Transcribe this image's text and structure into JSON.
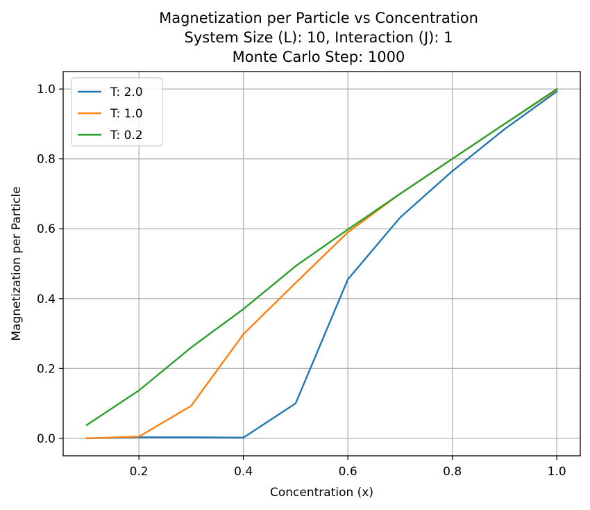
{
  "chart_data": {
    "type": "line",
    "title": [
      "Magnetization per Particle vs Concentration",
      "System Size (L): 10, Interaction (J): 1",
      "Monte Carlo Step: 1000"
    ],
    "xlabel": "Concentration (x)",
    "ylabel": "Magnetization per Particle",
    "xlim": [
      0.055,
      1.045
    ],
    "ylim": [
      -0.05,
      1.05
    ],
    "xticks": [
      0.2,
      0.4,
      0.6,
      0.8,
      1.0
    ],
    "xtick_labels": [
      "0.2",
      "0.4",
      "0.6",
      "0.8",
      "1.0"
    ],
    "yticks": [
      0.0,
      0.2,
      0.4,
      0.6,
      0.8,
      1.0
    ],
    "ytick_labels": [
      "0.0",
      "0.2",
      "0.4",
      "0.6",
      "0.8",
      "1.0"
    ],
    "grid": true,
    "legend_position": "top-left",
    "x": [
      0.1,
      0.2,
      0.3,
      0.4,
      0.5,
      0.6,
      0.7,
      0.8,
      0.9,
      1.0
    ],
    "series": [
      {
        "name": "T: 2.0",
        "color": "#1f77b4",
        "values": [
          0.0,
          0.003,
          0.003,
          0.002,
          0.1,
          0.455,
          0.632,
          0.765,
          0.885,
          0.993
        ]
      },
      {
        "name": "T: 1.0",
        "color": "#ff7f0e",
        "values": [
          0.0,
          0.005,
          0.093,
          0.298,
          0.445,
          0.59,
          0.7,
          0.8,
          0.9,
          0.998
        ]
      },
      {
        "name": "T: 0.2",
        "color": "#2ca02c",
        "values": [
          0.038,
          0.137,
          0.26,
          0.37,
          0.493,
          0.598,
          0.7,
          0.8,
          0.9,
          1.0
        ]
      }
    ]
  }
}
